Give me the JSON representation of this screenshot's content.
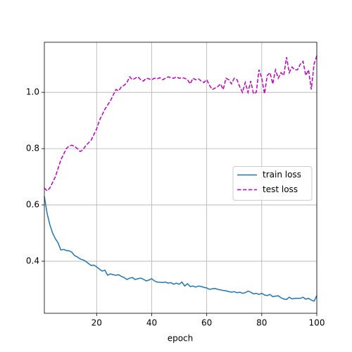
{
  "chart_data": {
    "type": "line",
    "xlabel": "epoch",
    "x": [
      1,
      2,
      3,
      4,
      5,
      6,
      7,
      8,
      9,
      10,
      11,
      12,
      13,
      14,
      15,
      16,
      17,
      18,
      19,
      20,
      21,
      22,
      23,
      24,
      25,
      26,
      27,
      28,
      29,
      30,
      31,
      32,
      33,
      34,
      35,
      36,
      37,
      38,
      39,
      40,
      41,
      42,
      43,
      44,
      45,
      46,
      47,
      48,
      49,
      50,
      51,
      52,
      53,
      54,
      55,
      56,
      57,
      58,
      59,
      60,
      61,
      62,
      63,
      64,
      65,
      66,
      67,
      68,
      69,
      70,
      71,
      72,
      73,
      74,
      75,
      76,
      77,
      78,
      79,
      80,
      81,
      82,
      83,
      84,
      85,
      86,
      87,
      88,
      89,
      90,
      91,
      92,
      93,
      94,
      95,
      96,
      97,
      98,
      99,
      100
    ],
    "series": [
      {
        "name": "train loss",
        "color": "#1f77b4",
        "dash": false,
        "values": [
          0.63,
          0.57,
          0.53,
          0.5,
          0.48,
          0.465,
          0.44,
          0.442,
          0.438,
          0.437,
          0.432,
          0.42,
          0.415,
          0.408,
          0.405,
          0.4,
          0.392,
          0.385,
          0.386,
          0.38,
          0.372,
          0.365,
          0.368,
          0.35,
          0.355,
          0.352,
          0.35,
          0.352,
          0.346,
          0.342,
          0.335,
          0.34,
          0.342,
          0.335,
          0.338,
          0.34,
          0.336,
          0.33,
          0.333,
          0.338,
          0.33,
          0.326,
          0.325,
          0.324,
          0.326,
          0.322,
          0.324,
          0.318,
          0.322,
          0.318,
          0.326,
          0.312,
          0.32,
          0.31,
          0.312,
          0.308,
          0.312,
          0.31,
          0.307,
          0.305,
          0.3,
          0.302,
          0.303,
          0.3,
          0.298,
          0.296,
          0.295,
          0.292,
          0.29,
          0.292,
          0.288,
          0.29,
          0.286,
          0.288,
          0.294,
          0.29,
          0.284,
          0.286,
          0.282,
          0.286,
          0.28,
          0.278,
          0.282,
          0.274,
          0.276,
          0.277,
          0.27,
          0.266,
          0.264,
          0.272,
          0.266,
          0.268,
          0.268,
          0.268,
          0.272,
          0.265,
          0.268,
          0.262,
          0.258,
          0.278
        ]
      },
      {
        "name": "test loss",
        "color": "#bf00bf",
        "dash": true,
        "values": [
          0.66,
          0.65,
          0.66,
          0.68,
          0.7,
          0.73,
          0.76,
          0.78,
          0.8,
          0.81,
          0.812,
          0.808,
          0.8,
          0.79,
          0.795,
          0.81,
          0.82,
          0.83,
          0.85,
          0.87,
          0.9,
          0.92,
          0.94,
          0.955,
          0.97,
          0.99,
          1.01,
          1.005,
          1.02,
          1.025,
          1.035,
          1.055,
          1.045,
          1.05,
          1.055,
          1.045,
          1.04,
          1.05,
          1.048,
          1.045,
          1.05,
          1.048,
          1.052,
          1.045,
          1.05,
          1.055,
          1.052,
          1.05,
          1.055,
          1.05,
          1.052,
          1.05,
          1.045,
          1.03,
          1.05,
          1.045,
          1.048,
          1.04,
          1.035,
          1.045,
          1.025,
          1.01,
          1.015,
          1.02,
          1.03,
          1.01,
          1.05,
          1.045,
          1.03,
          1.05,
          1.045,
          1.02,
          1.0,
          1.035,
          1.0,
          1.04,
          0.995,
          1.0,
          1.08,
          1.05,
          0.995,
          1.06,
          1.07,
          1.03,
          1.08,
          1.05,
          1.07,
          1.06,
          1.125,
          1.07,
          1.09,
          1.08,
          1.08,
          1.1,
          1.11,
          1.06,
          1.08,
          1.01,
          1.1,
          1.13
        ]
      }
    ],
    "xlim": [
      1,
      100
    ],
    "ylim": [
      0.215,
      1.178
    ],
    "xticks": [
      20,
      40,
      60,
      80,
      100
    ],
    "yticks": [
      0.4,
      0.6,
      0.8,
      {
        "value": 1,
        "label": "1.0"
      }
    ],
    "grid": true,
    "legend": "center right"
  }
}
